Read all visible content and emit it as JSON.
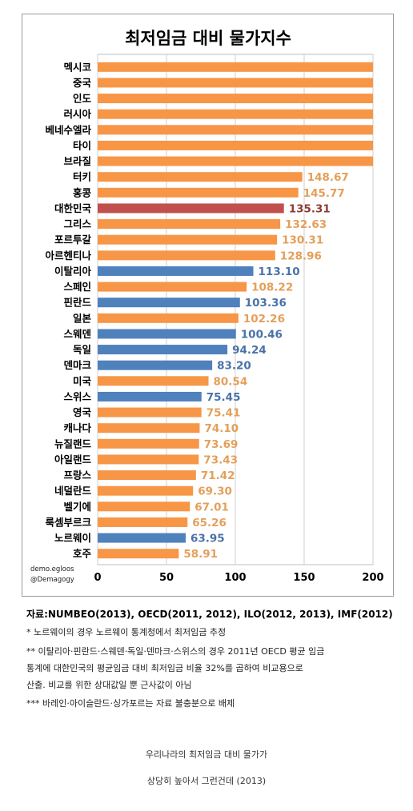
{
  "chart_data": {
    "type": "bar",
    "orientation": "horizontal",
    "title": "최저임금 대비 물가지수",
    "categories": [
      "멕시코",
      "중국",
      "인도",
      "러시아",
      "베네수엘라",
      "타이",
      "브라질",
      "터키",
      "홍콩",
      "대한민국",
      "그리스",
      "포르투갈",
      "아르헨티나",
      "이탈리아",
      "스페인",
      "핀란드",
      "일본",
      "스웨덴",
      "독일",
      "덴마크",
      "미국",
      "스위스",
      "영국",
      "캐나다",
      "뉴질랜드",
      "아일랜드",
      "프랑스",
      "네덜란드",
      "벨기에",
      "룩셈부르크",
      "노르웨이",
      "호주"
    ],
    "values": [
      200,
      200,
      200,
      200,
      200,
      200,
      200,
      148.67,
      145.77,
      135.31,
      132.63,
      130.31,
      128.96,
      113.1,
      108.22,
      103.36,
      102.26,
      100.46,
      94.24,
      83.2,
      80.54,
      75.45,
      75.41,
      74.1,
      73.69,
      73.43,
      71.42,
      69.3,
      67.01,
      65.26,
      63.95,
      58.91
    ],
    "value_labels": [
      "",
      "",
      "",
      "",
      "",
      "",
      "",
      "148.67",
      "145.77",
      "135.31",
      "132.63",
      "130.31",
      "128.96",
      "113.10",
      "108.22",
      "103.36",
      "102.26",
      "100.46",
      "94.24",
      "83.20",
      "80.54",
      "75.45",
      "75.41",
      "74.10",
      "73.69",
      "73.43",
      "71.42",
      "69.30",
      "67.01",
      "65.26",
      "63.95",
      "58.91"
    ],
    "bar_colors": [
      "orange",
      "orange",
      "orange",
      "orange",
      "orange",
      "orange",
      "orange",
      "orange",
      "orange",
      "red",
      "orange",
      "orange",
      "orange",
      "blue",
      "orange",
      "blue",
      "orange",
      "blue",
      "blue",
      "blue",
      "orange",
      "blue",
      "orange",
      "orange",
      "orange",
      "orange",
      "orange",
      "orange",
      "orange",
      "orange",
      "blue",
      "orange"
    ],
    "palette": {
      "orange": "#f79646",
      "blue": "#4f81bd",
      "red": "#c0504d",
      "label_orange": "#e3a05a",
      "label_blue": "#4a72a8",
      "label_red": "#8c3a38"
    },
    "xlim": [
      0,
      200
    ],
    "xticks": [
      "0",
      "50",
      "100",
      "150",
      "200"
    ],
    "grid": "vertical",
    "watermark": [
      "demo.egloos",
      "@Demagogy"
    ]
  },
  "notes": {
    "source": "자료:NUMBEO(2013), OECD(2011, 2012), ILO(2012, 2013), IMF(2012)",
    "note1": "* 노르웨이의 경우 노르웨이 통계청에서 최저임금 추정",
    "note2a": "** 이탈리아·핀란드·스웨덴·독일·덴마크·스위스의 경우 2011년 OECD 평균 임금",
    "note2b": "통계에 대한민국의 평균임금 대비 최저임금 비율 32%를 곱하여 비교용으로",
    "note2c": "산출. 비교를 위한 상대값일 뿐 근사값이 아님",
    "note3": "*** 바레인·아이슬란드·싱가포르는 자료 불충분으로 배제"
  },
  "caption": {
    "line1": "우리나라의 최저임금 대비 물가가",
    "line2": "상당히 높아서 그런건데 (2013)"
  }
}
